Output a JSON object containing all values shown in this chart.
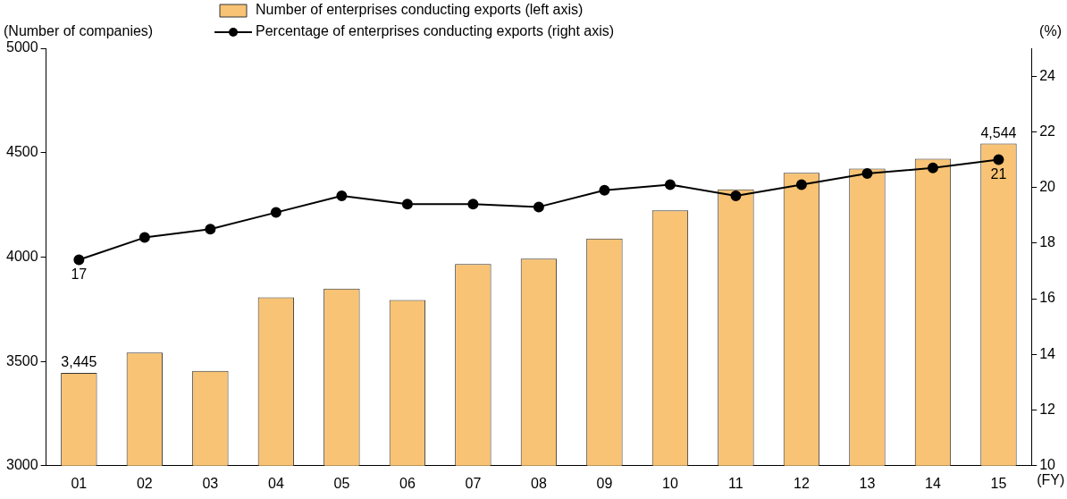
{
  "chart_data": {
    "type": "bar",
    "ylabel": "(Number of companies)",
    "y2label": "(%)",
    "xlabel": "(FY)",
    "categories": [
      "01",
      "02",
      "03",
      "04",
      "05",
      "06",
      "07",
      "08",
      "09",
      "10",
      "11",
      "12",
      "13",
      "14",
      "15"
    ],
    "series": [
      {
        "name": "Number of enterprises conducting exports (left axis)",
        "color": "#f8c374",
        "values": [
          3445,
          3542,
          3454,
          3807,
          3849,
          3794,
          3966,
          3992,
          4088,
          4223,
          4324,
          4403,
          4424,
          4471,
          4544
        ],
        "value_labels": [
          "3,445",
          null,
          null,
          null,
          null,
          null,
          null,
          null,
          null,
          null,
          null,
          null,
          null,
          null,
          "4,544"
        ]
      },
      {
        "name": "Percentage of enterprises conducting exports (right axis)",
        "type": "line",
        "axis": "y2",
        "color": "#000000",
        "marker": "circle",
        "values": [
          17.4,
          18.2,
          18.5,
          19.1,
          19.7,
          19.4,
          19.4,
          19.3,
          19.9,
          20.1,
          19.7,
          20.1,
          20.5,
          20.7,
          21.0
        ],
        "value_labels": [
          "17",
          null,
          null,
          null,
          null,
          null,
          null,
          null,
          null,
          null,
          null,
          null,
          null,
          null,
          "21"
        ]
      }
    ],
    "ylim": [
      3000,
      5000
    ],
    "yticks": [
      3000,
      3500,
      4000,
      4500,
      5000
    ],
    "y2lim": [
      10,
      25
    ],
    "y2ticks": [
      10,
      12,
      14,
      16,
      18,
      20,
      22,
      24
    ],
    "grid": false,
    "legend": "top"
  }
}
